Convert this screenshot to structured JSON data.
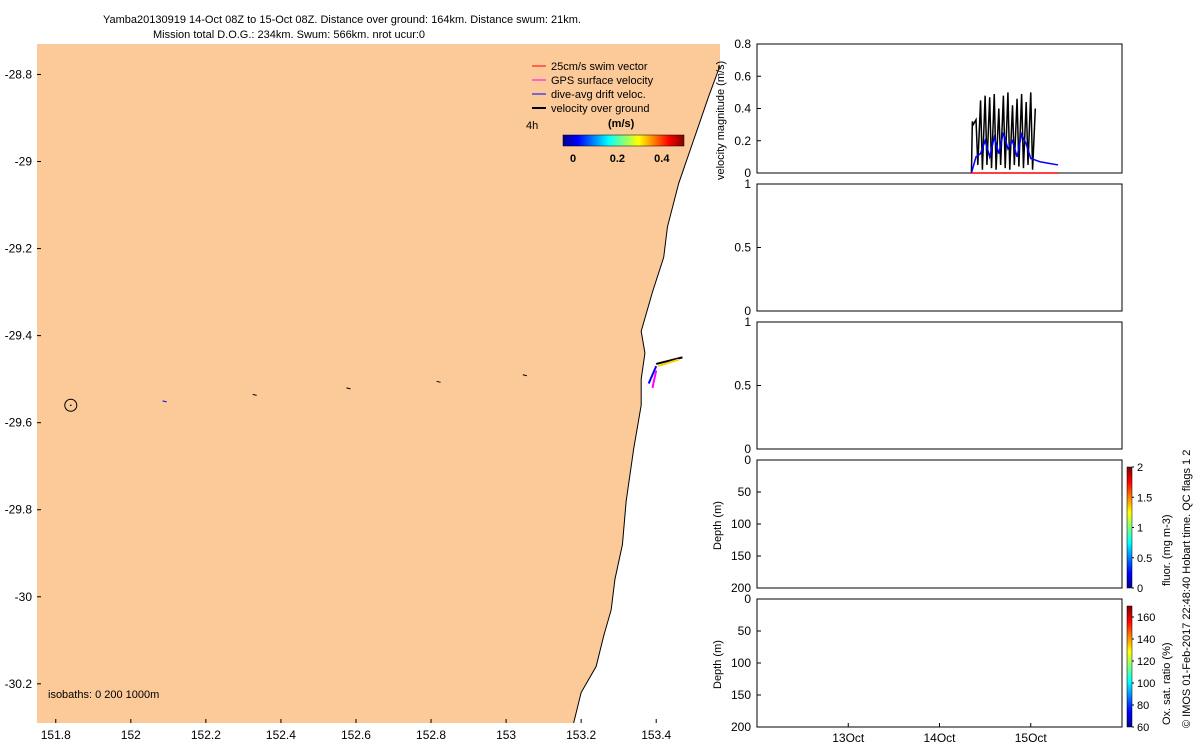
{
  "header": {
    "line1": "Yamba20130919 14-Oct 08Z to 15-Oct 08Z. Distance over ground: 164km. Distance swum: 21km.",
    "line2": "Mission total D.O.G.: 234km. Swum: 566km. nrot ucur:0"
  },
  "side_caption": "© IMOS 01-Feb-2017 22:48:40 Hobart time. QC flags 1  2",
  "colors": {
    "land": "#fcc998",
    "swim_vector": "#ff0000",
    "gps_velocity": "#ff00ff",
    "drift_velocity": "#0000ff",
    "vog": "#000000",
    "track_yellow": "#ffd000"
  },
  "chart_data": [
    {
      "type": "map",
      "xlim": [
        151.75,
        153.57
      ],
      "ylim": [
        -30.29,
        -28.73
      ],
      "x_ticks": [
        151.8,
        152,
        152.2,
        152.4,
        152.6,
        152.8,
        153,
        153.2,
        153.4
      ],
      "x_tick_labels": [
        "151.8",
        "152",
        "152.2",
        "152.4",
        "152.6",
        "152.8",
        "153",
        "153.2",
        "153.4"
      ],
      "y_ticks": [
        -28.8,
        -29,
        -29.2,
        -29.4,
        -29.6,
        -29.8,
        -30,
        -30.2
      ],
      "y_tick_labels": [
        "-28.8",
        "-29",
        "-29.2",
        "-29.4",
        "-29.6",
        "-29.8",
        "-30",
        "-30.2"
      ],
      "legend": {
        "entries": [
          "25cm/s swim vector",
          "GPS surface velocity",
          "dive-avg drift veloc.",
          "velocity over ground"
        ],
        "placement": "top-right",
        "time_label": "4h",
        "colorbar_title": "(m/s)",
        "colorbar_ticks": [
          "0",
          "0.2",
          "0.4"
        ],
        "colorbar_range": [
          0,
          0.5
        ]
      },
      "isobaths_label": "isobaths: 0   200  1000m",
      "coastline": [
        [
          153.57,
          -28.78
        ],
        [
          153.54,
          -28.85
        ],
        [
          153.5,
          -28.95
        ],
        [
          153.46,
          -29.05
        ],
        [
          153.43,
          -29.15
        ],
        [
          153.42,
          -29.22
        ],
        [
          153.39,
          -29.3
        ],
        [
          153.36,
          -29.39
        ],
        [
          153.37,
          -29.44
        ],
        [
          153.36,
          -29.5
        ],
        [
          153.36,
          -29.56
        ],
        [
          153.34,
          -29.66
        ],
        [
          153.32,
          -29.78
        ],
        [
          153.31,
          -29.88
        ],
        [
          153.29,
          -29.96
        ],
        [
          153.28,
          -30.03
        ],
        [
          153.26,
          -30.09
        ],
        [
          153.24,
          -30.16
        ],
        [
          153.2,
          -30.22
        ],
        [
          153.18,
          -30.29
        ]
      ],
      "start_marker": [
        151.84,
        -29.56
      ],
      "track_points": [
        [
          152.09,
          -29.55
        ],
        [
          152.33,
          -29.535
        ],
        [
          152.58,
          -29.52
        ],
        [
          152.82,
          -29.505
        ],
        [
          153.05,
          -29.49
        ]
      ],
      "glider_vectors": [
        {
          "x0": 153.4,
          "y0": -29.465,
          "x1": 153.47,
          "y1": -29.45,
          "kind": "vog"
        },
        {
          "x0": 153.4,
          "y0": -29.47,
          "x1": 153.38,
          "y1": -29.51,
          "kind": "drift"
        },
        {
          "x0": 153.4,
          "y0": -29.48,
          "x1": 153.39,
          "y1": -29.52,
          "kind": "gps"
        }
      ]
    },
    {
      "type": "line",
      "ylabel": "velocity magnitude (m/s)",
      "ylim": [
        0,
        0.8
      ],
      "y_ticks": [
        "0",
        "0.2",
        "0.4",
        "0.6",
        "0.8"
      ],
      "xlim": [
        12.0,
        16.0
      ],
      "x_ticks": [
        13,
        14,
        15
      ],
      "x_tick_labels": [
        "13Oct",
        "14Oct",
        "15Oct"
      ],
      "series": [
        {
          "color": "#000000",
          "x": [
            14.35,
            14.36,
            14.37,
            14.4,
            14.42,
            14.45,
            14.47,
            14.5,
            14.52,
            14.55,
            14.57,
            14.6,
            14.62,
            14.65,
            14.67,
            14.7,
            14.72,
            14.75,
            14.77,
            14.8,
            14.82,
            14.85,
            14.87,
            14.9,
            14.92,
            14.95,
            14.97,
            15.0,
            15.02,
            15.05
          ],
          "y": [
            0,
            0.32,
            0.3,
            0.33,
            0.05,
            0.45,
            0.02,
            0.48,
            0.05,
            0.47,
            0.03,
            0.49,
            0.02,
            0.4,
            0.05,
            0.48,
            0.03,
            0.5,
            0.02,
            0.42,
            0.05,
            0.46,
            0.04,
            0.49,
            0.03,
            0.44,
            0.05,
            0.5,
            0.02,
            0.4
          ]
        },
        {
          "color": "#0000ff",
          "x": [
            14.35,
            14.4,
            14.45,
            14.5,
            14.55,
            14.6,
            14.65,
            14.7,
            14.75,
            14.8,
            14.85,
            14.9,
            14.95,
            15.0,
            15.05,
            15.1,
            15.2,
            15.3
          ],
          "y": [
            0,
            0.1,
            0.12,
            0.2,
            0.1,
            0.22,
            0.12,
            0.25,
            0.15,
            0.2,
            0.1,
            0.24,
            0.18,
            0.09,
            0.08,
            0.07,
            0.06,
            0.05
          ]
        },
        {
          "color": "#ff0000",
          "x": [
            14.35,
            15.3
          ],
          "y": [
            0.0,
            0.0
          ]
        }
      ]
    },
    {
      "type": "line",
      "ylim": [
        0,
        1
      ],
      "y_ticks": [
        "0",
        "0.5",
        "1"
      ],
      "series": []
    },
    {
      "type": "line",
      "ylim": [
        0,
        1
      ],
      "y_ticks": [
        "0",
        "0.5",
        "1"
      ],
      "series": []
    },
    {
      "type": "heatmap",
      "ylabel": "Depth (m)",
      "ylim": [
        200,
        0
      ],
      "y_ticks": [
        "0",
        "50",
        "100",
        "150",
        "200"
      ],
      "colorbar_label": "fluor. (mg m-3)",
      "colorbar_ticks": [
        "0",
        "0.5",
        "1",
        "1.5",
        "2"
      ],
      "colorbar_range": [
        0,
        2
      ]
    },
    {
      "type": "heatmap",
      "ylabel": "Depth (m)",
      "ylim": [
        200,
        0
      ],
      "y_ticks": [
        "0",
        "50",
        "100",
        "150",
        "200"
      ],
      "colorbar_label": "Ox. sat. ratio (%)",
      "colorbar_ticks": [
        "60",
        "80",
        "100",
        "120",
        "140",
        "160"
      ],
      "colorbar_range": [
        60,
        170
      ]
    }
  ]
}
